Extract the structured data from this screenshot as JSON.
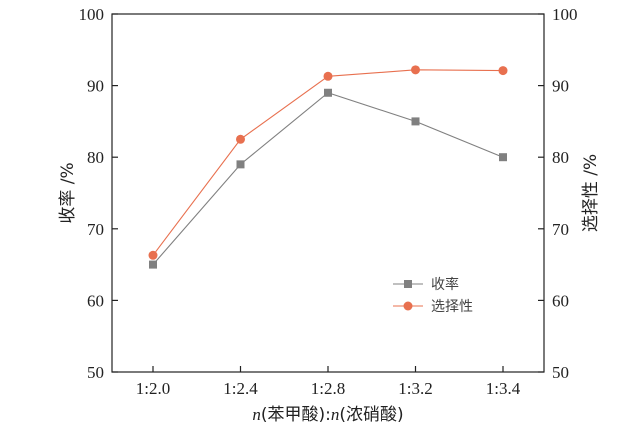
{
  "chart_data": {
    "type": "line",
    "categories": [
      "1:2.0",
      "1:2.4",
      "1:2.8",
      "1:3.2",
      "1:3.4"
    ],
    "series": [
      {
        "name": "收率",
        "values": [
          65,
          79,
          89,
          85,
          80
        ],
        "color": "#808080",
        "marker": "square"
      },
      {
        "name": "选择性",
        "values": [
          66.3,
          82.5,
          91.3,
          92.2,
          92.1
        ],
        "color": "#e8704f",
        "marker": "circle"
      }
    ],
    "title": "",
    "xlabel_parts": [
      {
        "text": "n",
        "italic": true
      },
      {
        "text": "(苯甲酸):",
        "italic": false
      },
      {
        "text": "n",
        "italic": true
      },
      {
        "text": "(浓硝酸)",
        "italic": false
      }
    ],
    "ylabel": "收率 /%",
    "ylabel_right": "选择性 /%",
    "ylim": [
      50,
      100
    ],
    "ylim_right": [
      50,
      100
    ],
    "yticks": [
      50,
      60,
      70,
      80,
      90,
      100
    ],
    "grid": false,
    "legend_position": "center-right"
  }
}
